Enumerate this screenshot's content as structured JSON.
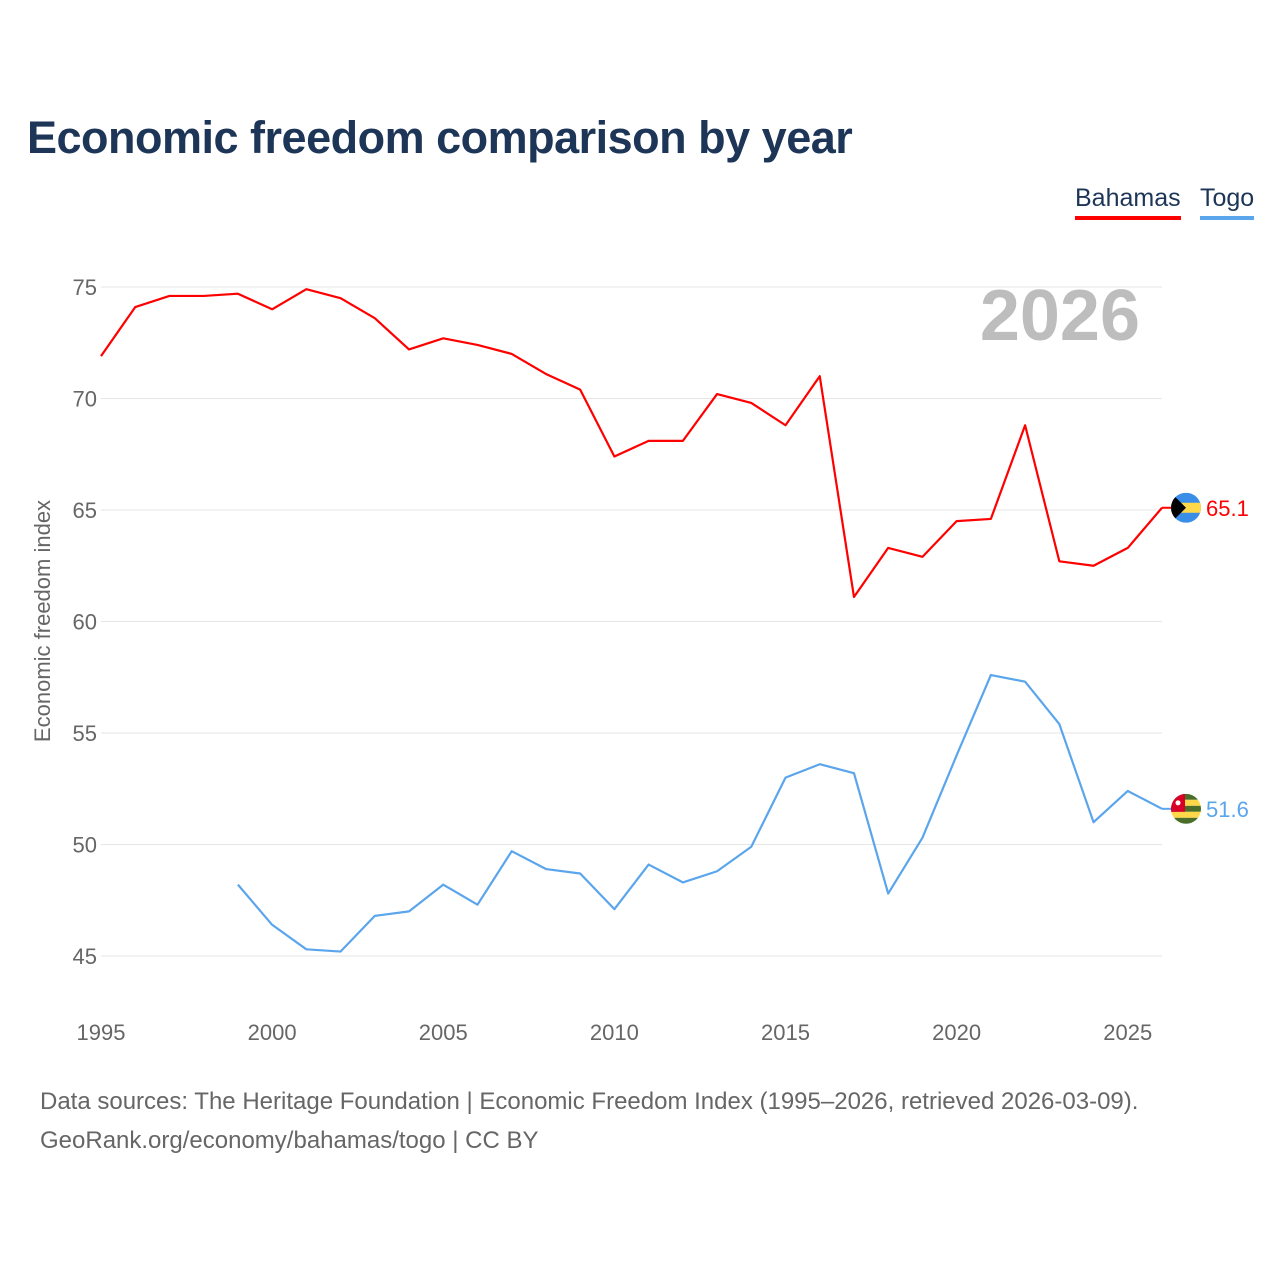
{
  "chart_data": {
    "type": "line",
    "title": "Economic freedom comparison by year",
    "xlabel": "",
    "ylabel": "Economic freedom index",
    "xlim": [
      1995,
      2026
    ],
    "ylim": [
      45,
      75
    ],
    "yticks": [
      45,
      50,
      55,
      60,
      65,
      70,
      75
    ],
    "xticks": [
      1995,
      2000,
      2005,
      2010,
      2015,
      2020,
      2025
    ],
    "grid": true,
    "legend_placement": "top-right",
    "year_label": "2026",
    "series": [
      {
        "name": "Bahamas",
        "color": "#ff0000",
        "end_label": "65.1",
        "x": [
          1995,
          1996,
          1997,
          1998,
          1999,
          2000,
          2001,
          2002,
          2003,
          2004,
          2005,
          2006,
          2007,
          2008,
          2009,
          2010,
          2011,
          2012,
          2013,
          2014,
          2015,
          2016,
          2017,
          2018,
          2019,
          2020,
          2021,
          2022,
          2023,
          2024,
          2025,
          2026
        ],
        "values": [
          71.9,
          74.1,
          74.6,
          74.6,
          74.7,
          74.0,
          74.9,
          74.5,
          73.6,
          72.2,
          72.7,
          72.4,
          72.0,
          71.1,
          70.4,
          67.4,
          68.1,
          68.1,
          70.2,
          69.8,
          68.8,
          71.0,
          61.1,
          63.3,
          62.9,
          64.5,
          64.6,
          68.8,
          62.7,
          62.5,
          63.3,
          65.1
        ]
      },
      {
        "name": "Togo",
        "color": "#5aa5ec",
        "end_label": "51.6",
        "x": [
          1999,
          2000,
          2001,
          2002,
          2003,
          2004,
          2005,
          2006,
          2007,
          2008,
          2009,
          2010,
          2011,
          2012,
          2013,
          2014,
          2015,
          2016,
          2017,
          2018,
          2019,
          2020,
          2021,
          2022,
          2023,
          2024,
          2025,
          2026
        ],
        "values": [
          48.2,
          46.4,
          45.3,
          45.2,
          46.8,
          47.0,
          48.2,
          47.3,
          49.7,
          48.9,
          48.7,
          47.1,
          49.1,
          48.3,
          48.8,
          49.9,
          53.0,
          53.6,
          53.2,
          47.8,
          50.3,
          54.0,
          57.6,
          57.3,
          55.4,
          51.0,
          52.4,
          51.6
        ]
      }
    ]
  },
  "source": {
    "line1": "Data sources: The Heritage Foundation | Economic Freedom Index (1995–2026, retrieved 2026-03-09).",
    "line2": "GeoRank.org/economy/bahamas/togo | CC BY"
  }
}
